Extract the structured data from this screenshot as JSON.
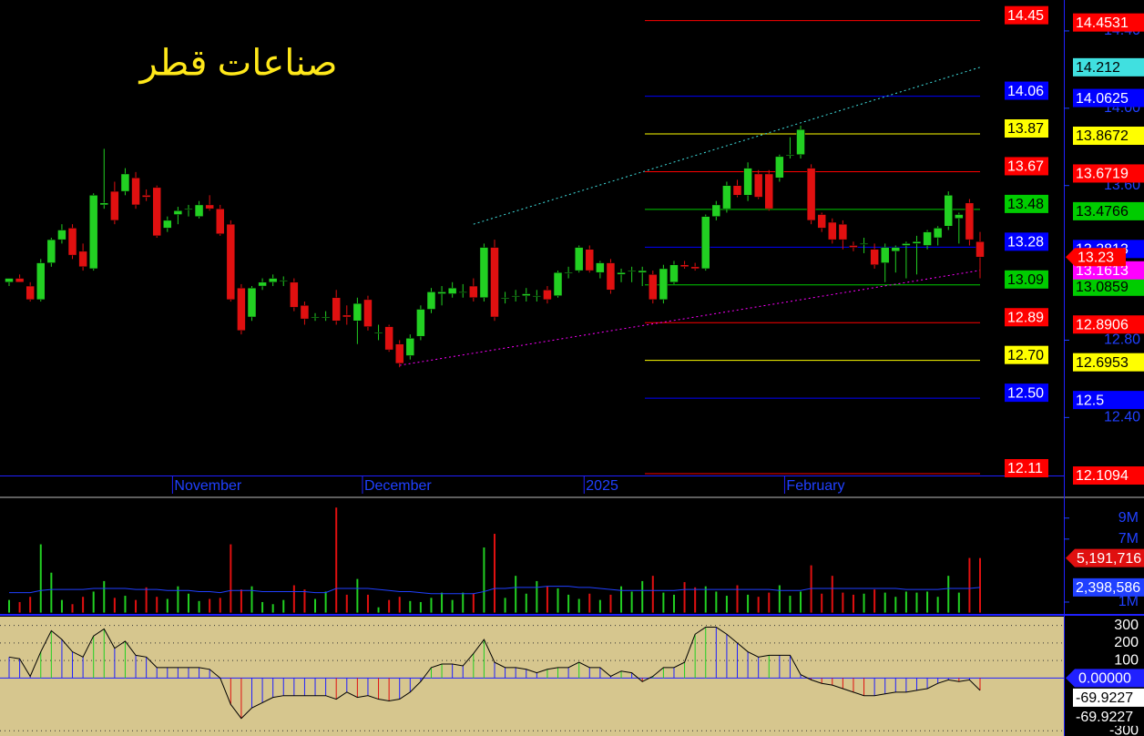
{
  "chart_data": [
    {
      "type": "candlestick",
      "title": "صناعات قطر",
      "categories": [
        null,
        null,
        null,
        null,
        null,
        null,
        null,
        null,
        null,
        null,
        null,
        null,
        null,
        null,
        null,
        null,
        "November",
        null,
        null,
        null,
        null,
        null,
        null,
        null,
        null,
        null,
        null,
        null,
        null,
        null,
        null,
        null,
        null,
        null,
        "December",
        null,
        null,
        null,
        null,
        null,
        null,
        null,
        null,
        null,
        null,
        null,
        null,
        null,
        null,
        null,
        null,
        null,
        null,
        null,
        null,
        "2025",
        null,
        null,
        null,
        null,
        null,
        null,
        null,
        null,
        null,
        null,
        null,
        null,
        null,
        null,
        null,
        null,
        null,
        null,
        "February",
        null,
        null,
        null,
        null,
        null,
        null,
        null,
        null,
        null,
        null,
        null,
        null,
        null,
        null,
        null,
        null,
        null,
        null
      ],
      "open": [
        13.1,
        13.12,
        13.08,
        13.01,
        13.2,
        13.32,
        13.38,
        13.26,
        13.17,
        13.5,
        13.57,
        13.57,
        13.64,
        13.55,
        13.59,
        13.38,
        13.45,
        13.48,
        13.44,
        13.5,
        13.48,
        13.4,
        13.07,
        12.92,
        13.08,
        13.1,
        13.11,
        13.1,
        12.98,
        12.92,
        12.92,
        13.02,
        12.93,
        12.9,
        13.01,
        12.84,
        12.87,
        12.78,
        12.72,
        12.82,
        12.96,
        13.04,
        13.04,
        13.05,
        13.08,
        13.02,
        13.28,
        13.02,
        13.03,
        13.03,
        13.03,
        13.06,
        13.03,
        13.15,
        13.16,
        13.27,
        13.15,
        13.2,
        13.14,
        13.16,
        13.15,
        13.14,
        13.01,
        13.1,
        13.19,
        13.18,
        13.17,
        13.44,
        13.48,
        13.6,
        13.55,
        13.66,
        13.66,
        13.64,
        13.76,
        13.76,
        13.69,
        13.45,
        13.41,
        13.4,
        13.29,
        13.3,
        13.27,
        13.2,
        13.26,
        13.29,
        13.3,
        13.29,
        13.33,
        13.39,
        13.43,
        13.51,
        13.31
      ],
      "high": [
        13.12,
        13.14,
        13.1,
        13.22,
        13.33,
        13.4,
        13.4,
        13.3,
        13.56,
        13.79,
        13.62,
        13.69,
        13.67,
        13.58,
        13.6,
        13.44,
        13.49,
        13.5,
        13.52,
        13.55,
        13.5,
        13.42,
        13.09,
        13.08,
        13.12,
        13.14,
        13.13,
        13.12,
        13.0,
        12.94,
        12.95,
        13.06,
        12.98,
        13.02,
        13.03,
        12.88,
        12.88,
        12.8,
        12.83,
        12.98,
        13.07,
        13.08,
        13.1,
        13.09,
        13.12,
        13.3,
        13.32,
        13.05,
        13.06,
        13.07,
        13.06,
        13.08,
        13.16,
        13.18,
        13.29,
        13.29,
        13.21,
        13.22,
        13.17,
        13.18,
        13.18,
        13.16,
        13.19,
        13.21,
        13.21,
        13.2,
        13.45,
        13.52,
        13.62,
        13.63,
        13.72,
        13.68,
        13.68,
        13.76,
        13.85,
        13.91,
        13.71,
        13.46,
        13.43,
        13.42,
        13.31,
        13.33,
        13.3,
        13.3,
        13.29,
        13.31,
        13.34,
        13.37,
        13.39,
        13.57,
        13.46,
        13.53,
        13.36
      ],
      "low": [
        13.08,
        13.1,
        13.0,
        13.0,
        13.18,
        13.3,
        13.22,
        13.16,
        13.16,
        13.48,
        13.4,
        13.55,
        13.48,
        13.52,
        13.33,
        13.36,
        13.4,
        13.44,
        13.43,
        13.47,
        13.34,
        13.0,
        12.83,
        12.9,
        13.06,
        13.08,
        13.08,
        12.95,
        12.88,
        12.9,
        12.9,
        12.88,
        12.88,
        12.78,
        12.85,
        12.8,
        12.74,
        12.66,
        12.7,
        12.8,
        12.94,
        12.98,
        13.02,
        13.02,
        13.0,
        13.0,
        12.9,
        12.99,
        13.0,
        13.0,
        13.0,
        12.99,
        13.02,
        13.12,
        13.15,
        13.15,
        13.12,
        13.04,
        13.1,
        13.1,
        13.08,
        12.99,
        12.99,
        13.09,
        13.17,
        13.16,
        13.16,
        13.42,
        13.46,
        13.54,
        13.52,
        13.53,
        13.47,
        13.62,
        13.74,
        13.74,
        13.4,
        13.36,
        13.3,
        13.27,
        13.26,
        13.25,
        13.17,
        13.1,
        13.15,
        13.12,
        13.14,
        13.27,
        13.29,
        13.37,
        13.3,
        13.29,
        13.12
      ],
      "close": [
        13.12,
        13.1,
        13.01,
        13.2,
        13.32,
        13.37,
        13.24,
        13.18,
        13.55,
        13.51,
        13.42,
        13.66,
        13.5,
        13.54,
        13.34,
        13.42,
        13.47,
        13.48,
        13.5,
        13.48,
        13.35,
        13.01,
        12.85,
        13.07,
        13.1,
        13.12,
        13.11,
        12.97,
        12.91,
        12.92,
        12.92,
        12.9,
        12.92,
        12.99,
        12.87,
        12.84,
        12.75,
        12.68,
        12.81,
        12.96,
        13.05,
        13.05,
        13.07,
        13.05,
        13.02,
        13.28,
        12.92,
        13.02,
        13.03,
        13.04,
        13.03,
        13.01,
        13.15,
        13.15,
        13.28,
        13.16,
        13.2,
        13.06,
        13.15,
        13.16,
        13.16,
        13.01,
        13.17,
        13.19,
        13.18,
        13.17,
        13.44,
        13.5,
        13.6,
        13.55,
        13.69,
        13.54,
        13.48,
        13.75,
        13.76,
        13.89,
        13.42,
        13.38,
        13.32,
        13.32,
        13.28,
        13.3,
        13.19,
        13.28,
        13.28,
        13.3,
        13.31,
        13.36,
        13.38,
        13.55,
        13.45,
        13.32,
        13.23
      ],
      "up_color": "#22d022",
      "down_color": "#e01010",
      "last_color": "#ff0000",
      "ylim": [
        12.1,
        14.56
      ],
      "yticks": [
        {
          "value": 14.4,
          "label": "14.40"
        },
        {
          "value": 14,
          "label": "14.00"
        },
        {
          "value": 13.6,
          "label": "13.60"
        },
        {
          "value": 12.8,
          "label": "12.80"
        },
        {
          "value": 12.4,
          "label": "12.40"
        }
      ],
      "levels": [
        {
          "value": 14.4531,
          "label": "14.45",
          "color": "#ff0000"
        },
        {
          "value": 14.0625,
          "label": "14.06",
          "color": "#0000ff"
        },
        {
          "value": 13.8672,
          "label": "13.87",
          "color": "#ffff00"
        },
        {
          "value": 13.6719,
          "label": "13.67",
          "color": "#ff0000"
        },
        {
          "value": 13.4766,
          "label": "13.48",
          "color": "#00cc00"
        },
        {
          "value": 13.2813,
          "label": "13.28",
          "color": "#0000ff"
        },
        {
          "value": 13.0859,
          "label": "13.09",
          "color": "#00cc00"
        },
        {
          "value": 12.8906,
          "label": "12.89",
          "color": "#ff0000"
        },
        {
          "value": 12.6953,
          "label": "12.70",
          "color": "#ffff00"
        },
        {
          "value": 12.5,
          "label": "12.50",
          "color": "#0000ff"
        },
        {
          "value": 12.1094,
          "label": "12.11",
          "color": "#ff0000"
        }
      ],
      "trendlines": [
        {
          "color": "#40e0e0",
          "x": [
            44,
            92
          ],
          "values": [
            13.4,
            14.212
          ]
        },
        {
          "color": "#ff00ff",
          "x": [
            37,
            92
          ],
          "values": [
            12.67,
            13.1613
          ]
        }
      ]
    },
    {
      "type": "bar",
      "values": [
        1200000,
        1000000,
        1500000,
        6500000,
        3800000,
        1200000,
        800000,
        1500000,
        2000000,
        3000000,
        1400000,
        1600000,
        1200000,
        2400000,
        1500000,
        1300000,
        2500000,
        1800000,
        1100000,
        1300000,
        1400000,
        6500000,
        2200000,
        2500000,
        1000000,
        800000,
        1200000,
        2600000,
        2200000,
        1300000,
        2000000,
        10000000,
        1700000,
        3200000,
        1700000,
        500000,
        1200000,
        1500000,
        1100000,
        1000000,
        1400000,
        1900000,
        1200000,
        1900000,
        1800000,
        6200000,
        7500000,
        1400000,
        3500000,
        1800000,
        3000000,
        2500000,
        2300000,
        1700000,
        1300000,
        1800000,
        1200000,
        1700000,
        2500000,
        2000000,
        3000000,
        3500000,
        1900000,
        1700000,
        2900000,
        2400000,
        2500000,
        2000000,
        1600000,
        2600000,
        1700000,
        1500000,
        1900000,
        2600000,
        1600000,
        2000000,
        4500000,
        1800000,
        3500000,
        1900000,
        1700000,
        1800000,
        2200000,
        1900000,
        1500000,
        2000000,
        1900000,
        2000000,
        1500000,
        3500000,
        1900000,
        5200000,
        5191716
      ],
      "value_label": "5,191,716",
      "ma": {
        "color": "#2040ff",
        "values": [
          1900000,
          1900000,
          1900000,
          2100000,
          2200000,
          2200000,
          2200000,
          2200000,
          2300000,
          2300000,
          2300000,
          2300000,
          2200000,
          2200000,
          2200000,
          2100000,
          2100000,
          2100000,
          2000000,
          2000000,
          1900000,
          2100000,
          2100000,
          2100000,
          2000000,
          2000000,
          2000000,
          2000000,
          2000000,
          1900000,
          1900000,
          2300000,
          2300000,
          2300000,
          2300000,
          2200000,
          2100000,
          2000000,
          2000000,
          1900000,
          1800000,
          1800000,
          1800000,
          1800000,
          1800000,
          2000000,
          2300000,
          2300000,
          2400000,
          2400000,
          2400000,
          2500000,
          2500000,
          2500000,
          2400000,
          2400000,
          2300000,
          2200000,
          2100000,
          2100000,
          2100000,
          2100000,
          2100000,
          2100000,
          2200000,
          2200000,
          2200000,
          2200000,
          2200000,
          2200000,
          2200000,
          2200000,
          2200000,
          2100000,
          2100000,
          2100000,
          2300000,
          2300000,
          2300000,
          2300000,
          2300000,
          2300000,
          2300000,
          2300000,
          2300000,
          2200000,
          2200000,
          2200000,
          2200000,
          2300000,
          2300000,
          2300000,
          2398586
        ],
        "value_label": "2,398,586"
      },
      "ylim": [
        0,
        10800000
      ],
      "yticks": [
        {
          "value": 9000000,
          "label": "9M"
        },
        {
          "value": 7000000,
          "label": "7M"
        },
        {
          "value": 1000000,
          "label": "1M"
        }
      ]
    },
    {
      "type": "oscillator",
      "values": [
        120,
        110,
        10,
        150,
        270,
        220,
        150,
        120,
        240,
        280,
        170,
        210,
        130,
        120,
        60,
        60,
        60,
        60,
        60,
        50,
        0,
        -150,
        -230,
        -170,
        -140,
        -110,
        -100,
        -100,
        -100,
        -100,
        -100,
        -120,
        -80,
        -110,
        -100,
        -120,
        -130,
        -120,
        -80,
        -20,
        60,
        80,
        80,
        70,
        140,
        220,
        90,
        60,
        60,
        50,
        30,
        50,
        60,
        60,
        90,
        60,
        60,
        10,
        40,
        30,
        -20,
        10,
        60,
        60,
        90,
        250,
        290,
        290,
        250,
        200,
        150,
        120,
        130,
        130,
        130,
        20,
        -10,
        -30,
        -40,
        -60,
        -80,
        -100,
        -100,
        -90,
        -80,
        -80,
        -70,
        -60,
        -30,
        -10,
        -20,
        -10,
        -69.9227
      ],
      "baseline": {
        "value": 0,
        "label": "0.00000"
      },
      "up_color": "#22d022",
      "down_color": "#e01010",
      "flat_color": "#2020ff",
      "background": "#d6c68e",
      "ylim": [
        -330,
        350
      ],
      "yticks": [
        300,
        200,
        100,
        -300
      ]
    }
  ]
}
